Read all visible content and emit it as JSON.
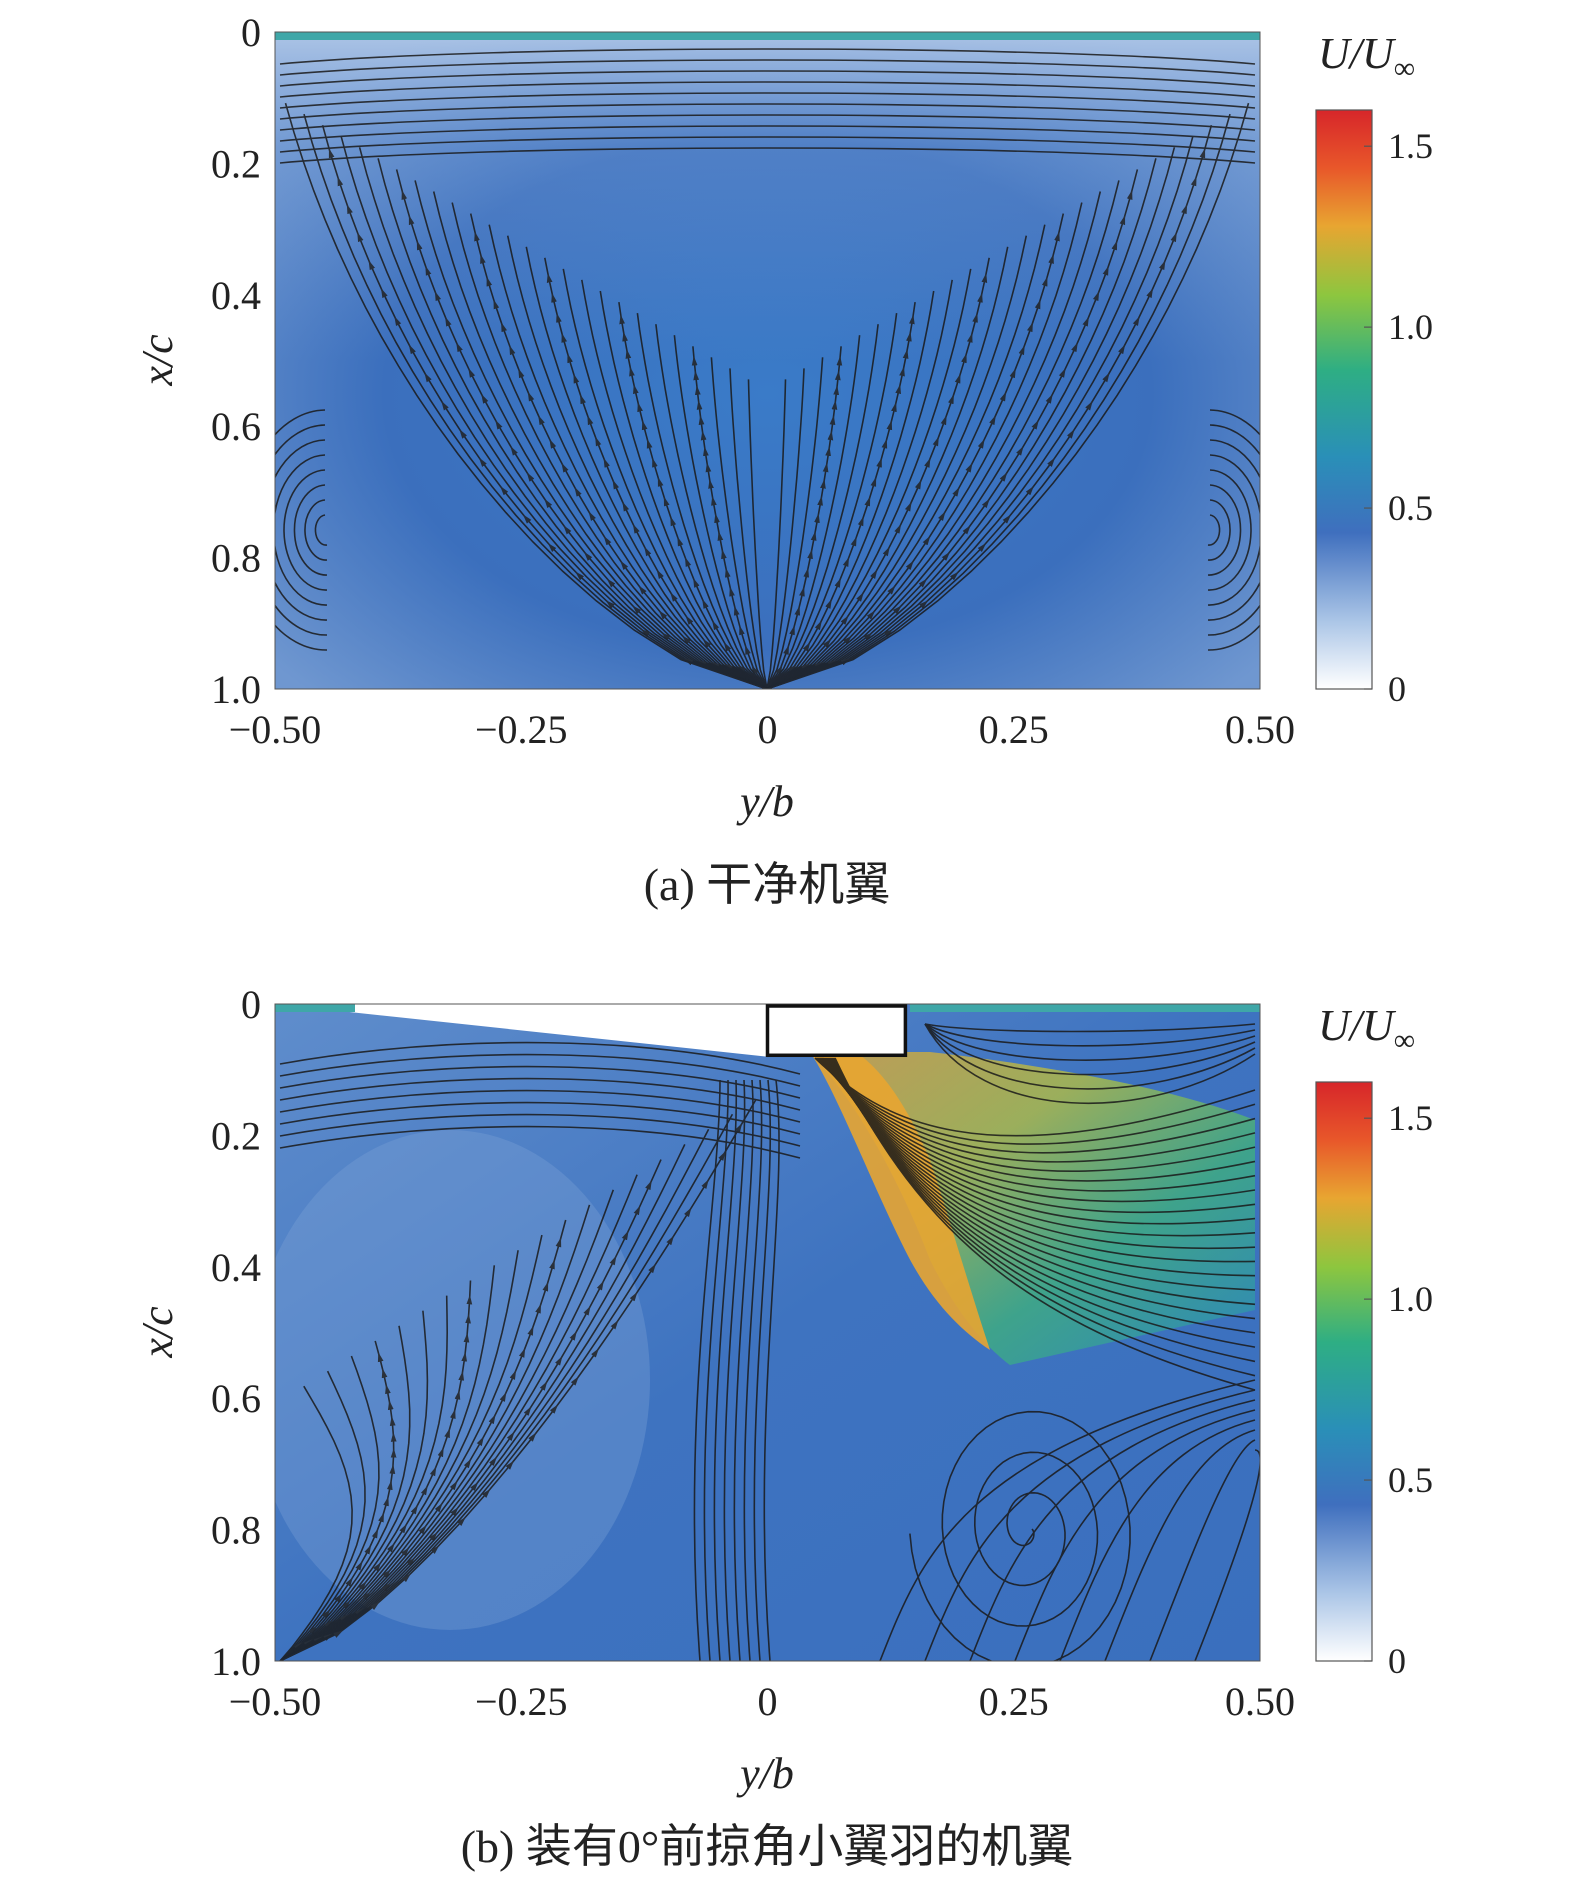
{
  "chart_data": [
    {
      "type": "heatmap",
      "panel": "a",
      "caption": "(a) 干净机翼",
      "xlabel": "y/b",
      "ylabel": "x/c",
      "xlim": [
        -0.5,
        0.5
      ],
      "ylim": [
        0,
        1.0
      ],
      "y_axis_inverted": true,
      "xticks": [
        "−0.50",
        "−0.25",
        "0",
        "0.25",
        "0.50"
      ],
      "xtick_values": [
        -0.5,
        -0.25,
        0,
        0.25,
        0.5
      ],
      "yticks": [
        "0",
        "0.2",
        "0.4",
        "0.6",
        "0.8",
        "1.0"
      ],
      "ytick_values": [
        0,
        0.2,
        0.4,
        0.6,
        0.8,
        1.0
      ],
      "colorbar": {
        "title_main": "U/U",
        "title_sub": "∞",
        "range": [
          0,
          1.6
        ],
        "ticks": [
          "0",
          "0.5",
          "1.0",
          "1.5"
        ],
        "tick_values": [
          0,
          0.5,
          1.0,
          1.5
        ],
        "colors": [
          "#ffffff",
          "#a9c4e6",
          "#3f6fbe",
          "#2a8fb8",
          "#2eae84",
          "#8dc63f",
          "#e8a531",
          "#e8572a",
          "#d7262a"
        ]
      },
      "field_description_values": {
        "background_speed": 0.45
      },
      "overlay": "streamlines",
      "wing_bar": "none"
    },
    {
      "type": "heatmap",
      "panel": "b",
      "caption": "(b) 装有0°前掠角小翼羽的机翼",
      "xlabel": "y/b",
      "ylabel": "x/c",
      "xlim": [
        -0.5,
        0.5
      ],
      "ylim": [
        0,
        1.0
      ],
      "y_axis_inverted": true,
      "xticks": [
        "−0.50",
        "−0.25",
        "0",
        "0.25",
        "0.50"
      ],
      "xtick_values": [
        -0.5,
        -0.25,
        0,
        0.25,
        0.5
      ],
      "yticks": [
        "0",
        "0.2",
        "0.4",
        "0.6",
        "0.8",
        "1.0"
      ],
      "ytick_values": [
        0,
        0.2,
        0.4,
        0.6,
        0.8,
        1.0
      ],
      "colorbar": {
        "title_main": "U/U",
        "title_sub": "∞",
        "range": [
          0,
          1.6
        ],
        "ticks": [
          "0",
          "0.5",
          "1.0",
          "1.5"
        ],
        "tick_values": [
          0,
          0.5,
          1.0,
          1.5
        ],
        "colors": [
          "#ffffff",
          "#a9c4e6",
          "#3f6fbe",
          "#2a8fb8",
          "#2eae84",
          "#8dc63f",
          "#e8a531",
          "#e8572a",
          "#d7262a"
        ]
      },
      "overlay": "streamlines",
      "winglet": {
        "y_start": 0.0,
        "y_end": 0.14,
        "x_start": 0.0,
        "x_end": 0.075
      },
      "jet_peak_speed": 1.4,
      "vortex_center": {
        "y": 0.24,
        "x": 0.8
      }
    }
  ]
}
